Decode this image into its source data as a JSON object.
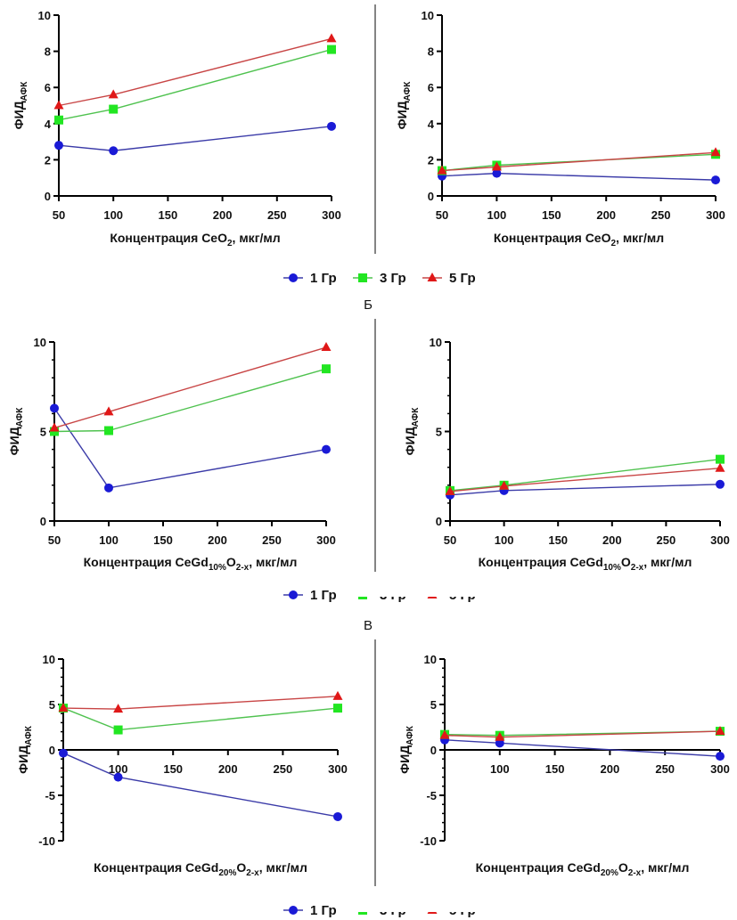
{
  "colors": {
    "1 Гр": "#1a1ad6",
    "3 Гр": "#22e622",
    "5 Гр": "#e01818",
    "line_1": "#3b3ba8",
    "line_3": "#4fc24f",
    "line_5": "#c84545"
  },
  "section_labels": [
    "Б",
    "В"
  ],
  "legend": [
    {
      "label": "1 Гр",
      "marker": "circle"
    },
    {
      "label": "3 Гр",
      "marker": "square"
    },
    {
      "label": "5 Гр",
      "marker": "triangle"
    }
  ],
  "chart_data": [
    {
      "type": "line",
      "ylabel": "ФИД",
      "ylabel_sub": "АФК",
      "xlabel": "Концентрация CeO",
      "xlabel_sub": "2",
      "xlabel_tail": ", мкг/мл",
      "x": [
        50,
        100,
        300
      ],
      "xlim": [
        50,
        300
      ],
      "ylim": [
        0,
        10
      ],
      "x_ticks": [
        50,
        100,
        150,
        200,
        250,
        300
      ],
      "y_ticks": [
        0,
        2,
        4,
        6,
        8,
        10
      ],
      "series": [
        {
          "name": "1 Гр",
          "values": [
            2.8,
            2.5,
            3.85
          ]
        },
        {
          "name": "3 Гр",
          "values": [
            4.2,
            4.8,
            8.1
          ]
        },
        {
          "name": "5 Гр",
          "values": [
            5.0,
            5.6,
            8.7
          ]
        }
      ]
    },
    {
      "type": "line",
      "ylabel": "ФИД",
      "ylabel_sub": "АФК",
      "xlabel": "Концентрация CeO",
      "xlabel_sub": "2",
      "xlabel_tail": ", мкг/мл",
      "x": [
        50,
        100,
        300
      ],
      "xlim": [
        50,
        300
      ],
      "ylim": [
        0,
        10
      ],
      "x_ticks": [
        50,
        100,
        150,
        200,
        250,
        300
      ],
      "y_ticks": [
        0,
        2,
        4,
        6,
        8,
        10
      ],
      "series": [
        {
          "name": "1 Гр",
          "values": [
            1.1,
            1.25,
            0.88
          ]
        },
        {
          "name": "3 Гр",
          "values": [
            1.4,
            1.7,
            2.3
          ]
        },
        {
          "name": "5 Гр",
          "values": [
            1.4,
            1.6,
            2.4
          ]
        }
      ]
    },
    {
      "type": "line",
      "ylabel": "ФИД",
      "ylabel_sub": "АФК",
      "xlabel": "Концентрация CeGd",
      "xlabel_sub": "10%",
      "xlabel_mid": "O",
      "xlabel_sub2": "2-x",
      "xlabel_tail": ", мкг/мл",
      "x": [
        50,
        100,
        300
      ],
      "xlim": [
        50,
        300
      ],
      "ylim": [
        0,
        10
      ],
      "x_ticks": [
        50,
        100,
        150,
        200,
        250,
        300
      ],
      "y_ticks": [
        0,
        5,
        10
      ],
      "series": [
        {
          "name": "1 Гр",
          "values": [
            6.3,
            1.85,
            4.0
          ]
        },
        {
          "name": "3 Гр",
          "values": [
            5.0,
            5.05,
            8.5
          ]
        },
        {
          "name": "5 Гр",
          "values": [
            5.2,
            6.1,
            9.7
          ]
        }
      ]
    },
    {
      "type": "line",
      "ylabel": "ФИД",
      "ylabel_sub": "АФК",
      "xlabel": "Концентрация CeGd",
      "xlabel_sub": "10%",
      "xlabel_mid": "O",
      "xlabel_sub2": "2-x",
      "xlabel_tail": ", мкг/мл",
      "x": [
        50,
        100,
        300
      ],
      "xlim": [
        50,
        300
      ],
      "ylim": [
        0,
        10
      ],
      "x_ticks": [
        50,
        100,
        150,
        200,
        250,
        300
      ],
      "y_ticks": [
        0,
        5,
        10
      ],
      "series": [
        {
          "name": "1 Гр",
          "values": [
            1.45,
            1.7,
            2.05
          ]
        },
        {
          "name": "3 Гр",
          "values": [
            1.7,
            2.0,
            3.45
          ]
        },
        {
          "name": "5 Гр",
          "values": [
            1.65,
            1.95,
            2.95
          ]
        }
      ]
    },
    {
      "type": "line",
      "ylabel": "ФИД",
      "ylabel_sub": "АФК",
      "xlabel": "Концентрация CeGd",
      "xlabel_sub": "20%",
      "xlabel_mid": "O",
      "xlabel_sub2": "2-x",
      "xlabel_tail": ", мкг/мл",
      "x": [
        50,
        100,
        300
      ],
      "xlim": [
        50,
        300
      ],
      "ylim": [
        -10,
        10
      ],
      "x_ticks": [
        100,
        150,
        200,
        250,
        300
      ],
      "y_ticks": [
        -10,
        -5,
        0,
        5,
        10
      ],
      "series": [
        {
          "name": "1 Гр",
          "values": [
            -0.35,
            -3.0,
            -7.35
          ]
        },
        {
          "name": "3 Гр",
          "values": [
            4.6,
            2.2,
            4.6
          ]
        },
        {
          "name": "5 Гр",
          "values": [
            4.6,
            4.5,
            5.9
          ]
        }
      ]
    },
    {
      "type": "line",
      "ylabel": "ФИД",
      "ylabel_sub": "АФК",
      "xlabel": "Концентрация CeGd",
      "xlabel_sub": "20%",
      "xlabel_mid": "O",
      "xlabel_sub2": "2-x",
      "xlabel_tail": ", мкг/мл",
      "x": [
        50,
        100,
        300
      ],
      "xlim": [
        50,
        300
      ],
      "ylim": [
        -10,
        10
      ],
      "x_ticks": [
        100,
        150,
        200,
        250,
        300
      ],
      "y_ticks": [
        -10,
        -5,
        0,
        5,
        10
      ],
      "series": [
        {
          "name": "1 Гр",
          "values": [
            1.1,
            0.75,
            -0.7
          ]
        },
        {
          "name": "3 Гр",
          "values": [
            1.7,
            1.6,
            2.05
          ]
        },
        {
          "name": "5 Гр",
          "values": [
            1.6,
            1.4,
            2.05
          ]
        }
      ]
    }
  ]
}
